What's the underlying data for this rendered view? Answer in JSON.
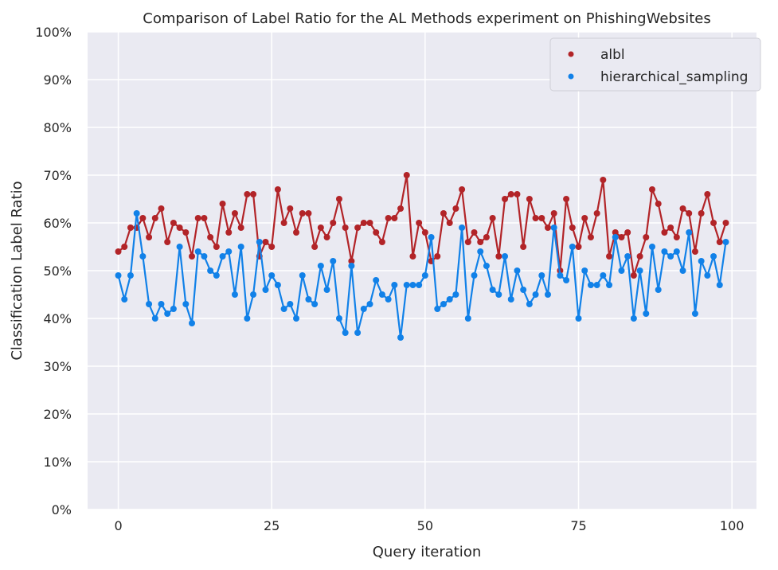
{
  "chart_data": {
    "type": "line",
    "title": "Comparison of Label Ratio for the AL Methods experiment on PhishingWebsites",
    "xlabel": "Query iteration",
    "ylabel": "Classification Label Ratio",
    "xlim": [
      -5,
      104
    ],
    "ylim": [
      0,
      100
    ],
    "xticks": [
      0,
      25,
      50,
      75,
      100
    ],
    "yticks": [
      0,
      10,
      20,
      30,
      40,
      50,
      60,
      70,
      80,
      90,
      100
    ],
    "ytick_labels": [
      "0%",
      "10%",
      "20%",
      "30%",
      "40%",
      "50%",
      "60%",
      "70%",
      "80%",
      "90%",
      "100%"
    ],
    "grid": true,
    "legend_position": "top-right",
    "background": "#eaeaf2",
    "series": [
      {
        "name": "albl",
        "color": "#b22428",
        "values": [
          54,
          55,
          59,
          59,
          61,
          57,
          61,
          63,
          56,
          60,
          59,
          58,
          53,
          61,
          61,
          57,
          55,
          64,
          58,
          62,
          59,
          66,
          66,
          53,
          56,
          55,
          67,
          60,
          63,
          58,
          62,
          62,
          55,
          59,
          57,
          60,
          65,
          59,
          52,
          59,
          60,
          60,
          58,
          56,
          61,
          61,
          63,
          70,
          53,
          60,
          58,
          52,
          53,
          62,
          60,
          63,
          67,
          56,
          58,
          56,
          57,
          61,
          53,
          65,
          66,
          66,
          55,
          65,
          61,
          61,
          59,
          62,
          50,
          65,
          59,
          55,
          61,
          57,
          62,
          69,
          53,
          58,
          57,
          58,
          49,
          53,
          57,
          67,
          64,
          58,
          59,
          57,
          63,
          62,
          54,
          62,
          66,
          60,
          56,
          60
        ]
      },
      {
        "name": "hierarchical_sampling",
        "color": "#1181e8",
        "values": [
          49,
          44,
          49,
          62,
          53,
          43,
          40,
          43,
          41,
          42,
          55,
          43,
          39,
          54,
          53,
          50,
          49,
          53,
          54,
          45,
          55,
          40,
          45,
          56,
          46,
          49,
          47,
          42,
          43,
          40,
          49,
          44,
          43,
          51,
          46,
          52,
          40,
          37,
          51,
          37,
          42,
          43,
          48,
          45,
          44,
          47,
          36,
          47,
          47,
          47,
          49,
          57,
          42,
          43,
          44,
          45,
          59,
          40,
          49,
          54,
          51,
          46,
          45,
          53,
          44,
          50,
          46,
          43,
          45,
          49,
          45,
          59,
          49,
          48,
          55,
          40,
          50,
          47,
          47,
          49,
          47,
          57,
          50,
          53,
          40,
          50,
          41,
          55,
          46,
          54,
          53,
          54,
          50,
          58,
          41,
          52,
          49,
          53,
          47,
          56
        ]
      }
    ]
  }
}
